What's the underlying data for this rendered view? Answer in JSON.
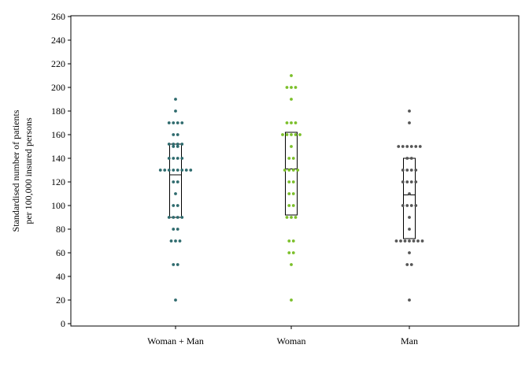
{
  "chart_data": {
    "type": "scatter",
    "subtype": "dot-strip-with-box",
    "title": "",
    "xlabel": "",
    "ylabel_lines": [
      "Standardised number of patients",
      "per 100,000 insured persons"
    ],
    "ylim": [
      0,
      260
    ],
    "yticks": [
      0,
      20,
      40,
      60,
      80,
      100,
      120,
      140,
      160,
      180,
      200,
      220,
      240,
      260
    ],
    "grid": false,
    "legend": "none",
    "categories": [
      "Woman + Man",
      "Woman",
      "Man"
    ],
    "series": [
      {
        "category": "Woman + Man",
        "color": "#2f6b6e",
        "box": {
          "q1": 90,
          "median": 126,
          "q3": 152
        },
        "values": [
          190,
          180,
          170,
          170,
          170,
          170,
          160,
          160,
          152,
          152,
          152,
          152,
          150,
          150,
          140,
          140,
          140,
          140,
          130,
          130,
          130,
          130,
          130,
          130,
          130,
          130,
          120,
          120,
          110,
          100,
          100,
          90,
          90,
          90,
          90,
          80,
          80,
          70,
          70,
          70,
          50,
          50,
          20
        ]
      },
      {
        "category": "Woman",
        "color": "#7bbf2a",
        "box": {
          "q1": 92,
          "median": 131,
          "q3": 162
        },
        "values": [
          210,
          200,
          200,
          200,
          190,
          170,
          170,
          170,
          160,
          160,
          160,
          160,
          160,
          150,
          140,
          140,
          130,
          130,
          130,
          130,
          120,
          120,
          110,
          110,
          100,
          100,
          90,
          90,
          90,
          70,
          70,
          60,
          60,
          50,
          20
        ]
      },
      {
        "category": "Man",
        "color": "#555555",
        "box": {
          "q1": 72,
          "median": 109,
          "q3": 140
        },
        "values": [
          180,
          170,
          150,
          150,
          150,
          150,
          150,
          150,
          140,
          140,
          130,
          130,
          130,
          130,
          120,
          120,
          120,
          120,
          110,
          100,
          100,
          100,
          100,
          90,
          80,
          70,
          70,
          70,
          70,
          70,
          70,
          70,
          60,
          50,
          50,
          20
        ]
      }
    ]
  }
}
